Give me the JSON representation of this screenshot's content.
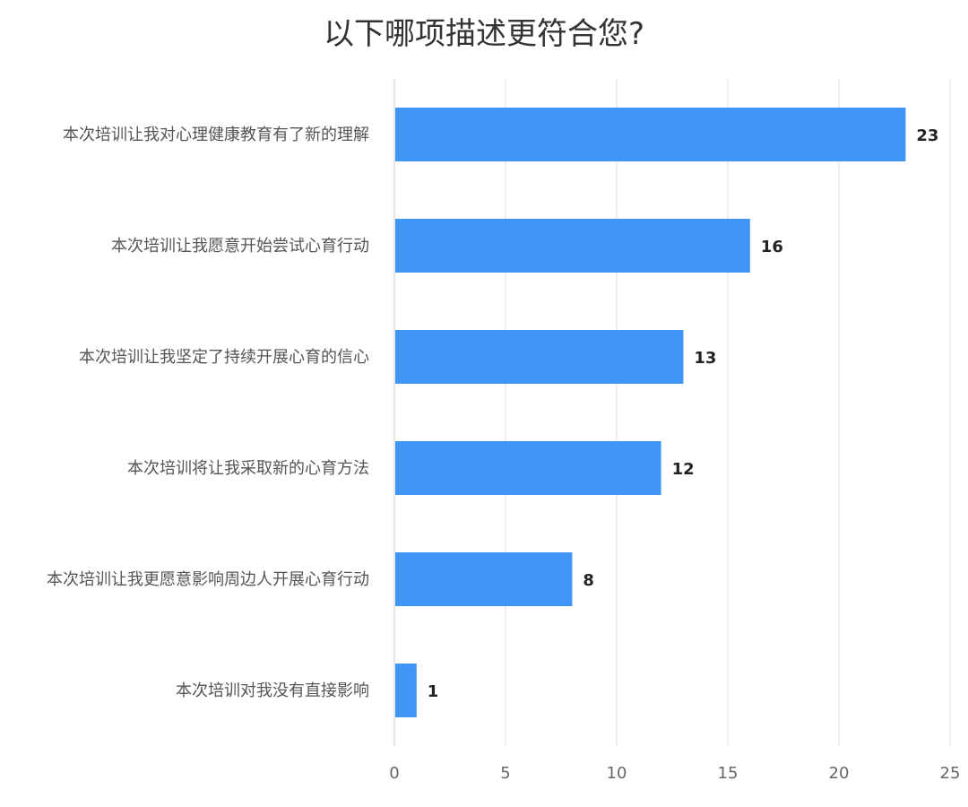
{
  "chart_data": {
    "type": "bar",
    "orientation": "horizontal",
    "title": "以下哪项描述更符合您?",
    "categories": [
      "本次培训让我对心理健康教育有了新的理解",
      "本次培训让我愿意开始尝试心育行动",
      "本次培训让我坚定了持续开展心育的信心",
      "本次培训将让我采取新的心育方法",
      "本次培训让我更愿意影响周边人开展心育行动",
      "本次培训对我没有直接影响"
    ],
    "values": [
      23,
      16,
      13,
      12,
      8,
      1
    ],
    "xlim": [
      0,
      25
    ],
    "xticks": [
      0,
      5,
      10,
      15,
      20,
      25
    ],
    "grid": "vertical",
    "bar_color": "#3f95f6",
    "data_labels": true,
    "legend": "none"
  }
}
